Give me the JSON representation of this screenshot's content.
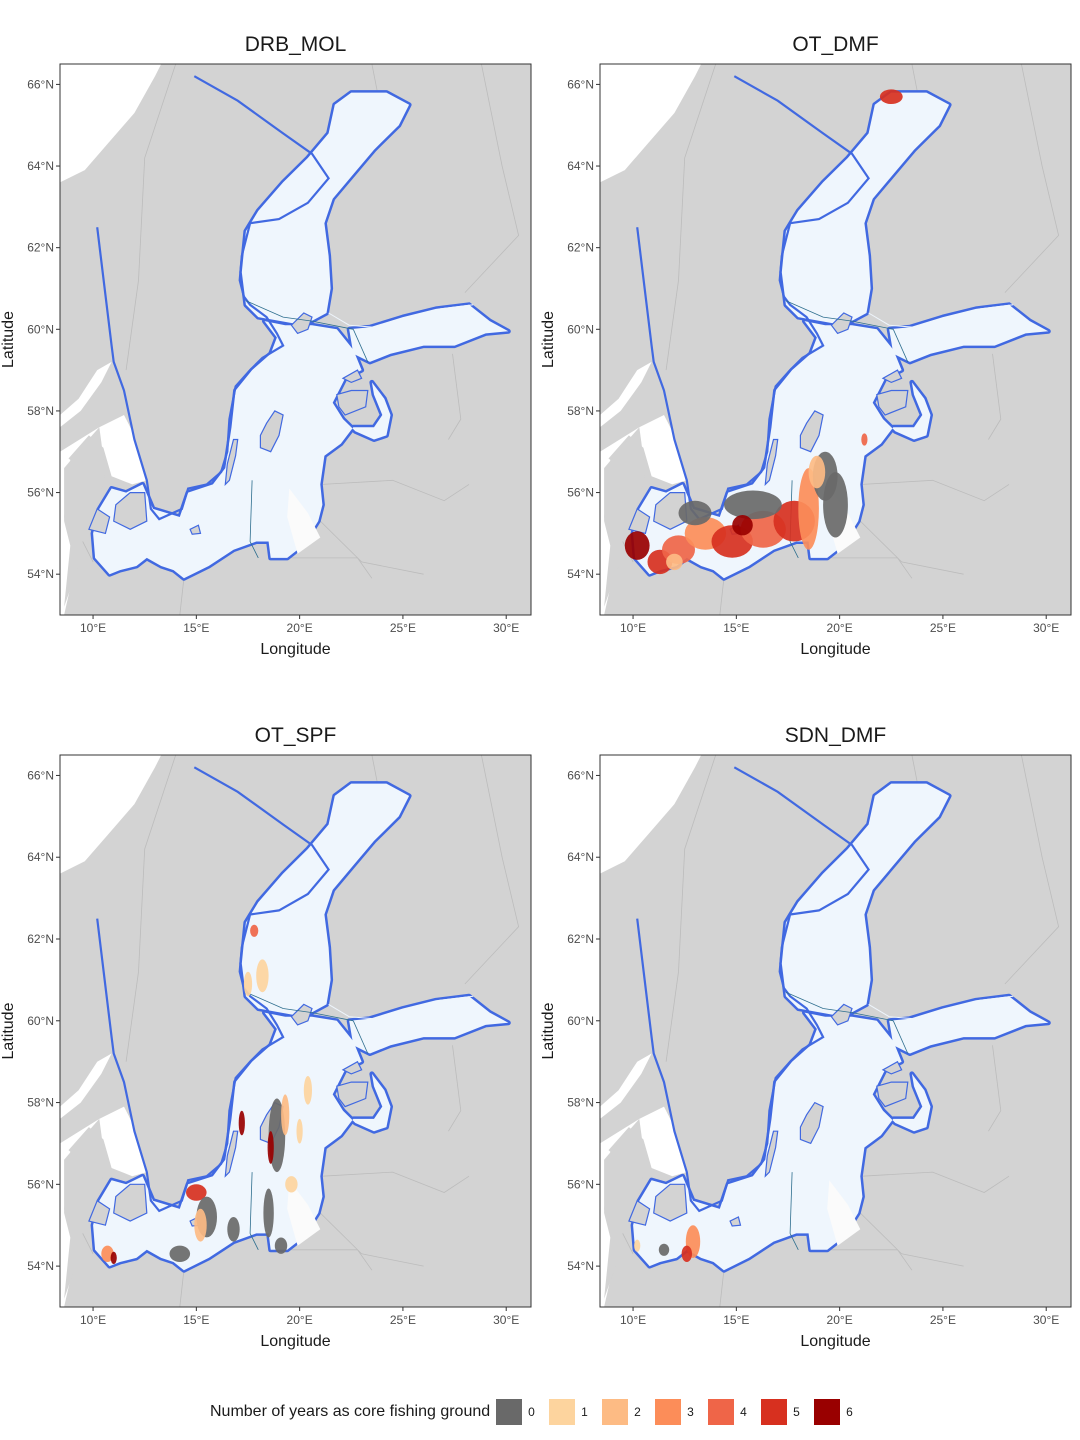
{
  "panels": [
    {
      "title": "DRB_MOL",
      "core": []
    },
    {
      "title": "OT_DMF",
      "core": [
        {
          "lon": 22.5,
          "lat": 65.7,
          "rx": 0.55,
          "ry": 0.18,
          "years": 5
        },
        {
          "lon": 10.2,
          "lat": 54.7,
          "rx": 0.6,
          "ry": 0.35,
          "years": 6
        },
        {
          "lon": 11.3,
          "lat": 54.3,
          "rx": 0.6,
          "ry": 0.3,
          "years": 5
        },
        {
          "lon": 12.2,
          "lat": 54.6,
          "rx": 0.8,
          "ry": 0.35,
          "years": 4
        },
        {
          "lon": 13.5,
          "lat": 55.0,
          "rx": 1.0,
          "ry": 0.4,
          "years": 3
        },
        {
          "lon": 14.8,
          "lat": 54.8,
          "rx": 1.0,
          "ry": 0.4,
          "years": 5
        },
        {
          "lon": 16.3,
          "lat": 55.1,
          "rx": 1.1,
          "ry": 0.45,
          "years": 4
        },
        {
          "lon": 17.8,
          "lat": 55.3,
          "rx": 1.0,
          "ry": 0.5,
          "years": 5
        },
        {
          "lon": 18.5,
          "lat": 55.6,
          "rx": 0.5,
          "ry": 1.0,
          "years": 3
        },
        {
          "lon": 19.3,
          "lat": 56.4,
          "rx": 0.6,
          "ry": 0.6,
          "years": 0
        },
        {
          "lon": 19.8,
          "lat": 55.7,
          "rx": 0.6,
          "ry": 0.8,
          "years": 0
        },
        {
          "lon": 15.8,
          "lat": 55.7,
          "rx": 1.4,
          "ry": 0.35,
          "years": 0
        },
        {
          "lon": 13.0,
          "lat": 55.5,
          "rx": 0.8,
          "ry": 0.3,
          "years": 0
        },
        {
          "lon": 15.3,
          "lat": 55.2,
          "rx": 0.5,
          "ry": 0.25,
          "years": 6
        },
        {
          "lon": 12.0,
          "lat": 54.3,
          "rx": 0.4,
          "ry": 0.2,
          "years": 2
        },
        {
          "lon": 18.9,
          "lat": 56.5,
          "rx": 0.4,
          "ry": 0.4,
          "years": 2
        },
        {
          "lon": 21.2,
          "lat": 57.3,
          "rx": 0.15,
          "ry": 0.15,
          "years": 4
        }
      ]
    },
    {
      "title": "OT_SPF",
      "core": [
        {
          "lon": 17.8,
          "lat": 62.2,
          "rx": 0.2,
          "ry": 0.15,
          "years": 4
        },
        {
          "lon": 18.2,
          "lat": 61.1,
          "rx": 0.3,
          "ry": 0.4,
          "years": 1
        },
        {
          "lon": 17.5,
          "lat": 60.9,
          "rx": 0.2,
          "ry": 0.3,
          "years": 1
        },
        {
          "lon": 17.2,
          "lat": 57.5,
          "rx": 0.15,
          "ry": 0.3,
          "years": 6
        },
        {
          "lon": 18.9,
          "lat": 57.2,
          "rx": 0.4,
          "ry": 0.9,
          "years": 0
        },
        {
          "lon": 18.6,
          "lat": 56.9,
          "rx": 0.15,
          "ry": 0.4,
          "years": 6
        },
        {
          "lon": 19.3,
          "lat": 57.7,
          "rx": 0.2,
          "ry": 0.5,
          "years": 2
        },
        {
          "lon": 20.4,
          "lat": 58.3,
          "rx": 0.2,
          "ry": 0.35,
          "years": 1
        },
        {
          "lon": 20.0,
          "lat": 57.3,
          "rx": 0.15,
          "ry": 0.3,
          "years": 1
        },
        {
          "lon": 19.6,
          "lat": 56.0,
          "rx": 0.3,
          "ry": 0.2,
          "years": 1
        },
        {
          "lon": 15.0,
          "lat": 55.8,
          "rx": 0.5,
          "ry": 0.2,
          "years": 5
        },
        {
          "lon": 15.5,
          "lat": 55.2,
          "rx": 0.5,
          "ry": 0.5,
          "years": 0
        },
        {
          "lon": 15.2,
          "lat": 55.0,
          "rx": 0.3,
          "ry": 0.4,
          "years": 2
        },
        {
          "lon": 14.2,
          "lat": 54.3,
          "rx": 0.5,
          "ry": 0.2,
          "years": 0
        },
        {
          "lon": 16.8,
          "lat": 54.9,
          "rx": 0.3,
          "ry": 0.3,
          "years": 0
        },
        {
          "lon": 18.5,
          "lat": 55.3,
          "rx": 0.25,
          "ry": 0.6,
          "years": 0
        },
        {
          "lon": 19.1,
          "lat": 54.5,
          "rx": 0.3,
          "ry": 0.2,
          "years": 0
        },
        {
          "lon": 10.7,
          "lat": 54.3,
          "rx": 0.3,
          "ry": 0.2,
          "years": 3
        },
        {
          "lon": 11.0,
          "lat": 54.2,
          "rx": 0.15,
          "ry": 0.15,
          "years": 6
        }
      ]
    },
    {
      "title": "SDN_DMF",
      "core": [
        {
          "lon": 12.9,
          "lat": 54.6,
          "rx": 0.35,
          "ry": 0.4,
          "years": 3
        },
        {
          "lon": 12.6,
          "lat": 54.3,
          "rx": 0.25,
          "ry": 0.2,
          "years": 5
        },
        {
          "lon": 11.5,
          "lat": 54.4,
          "rx": 0.25,
          "ry": 0.15,
          "years": 0
        },
        {
          "lon": 10.2,
          "lat": 54.5,
          "rx": 0.15,
          "ry": 0.15,
          "years": 1
        }
      ]
    }
  ],
  "axes": {
    "xlabel": "Longitude",
    "ylabel": "Latitude",
    "xticks": [
      {
        "value": 10,
        "label": "10°E"
      },
      {
        "value": 15,
        "label": "15°E"
      },
      {
        "value": 20,
        "label": "20°E"
      },
      {
        "value": 25,
        "label": "25°E"
      },
      {
        "value": 30,
        "label": "30°E"
      }
    ],
    "yticks": [
      {
        "value": 54,
        "label": "54°N"
      },
      {
        "value": 56,
        "label": "56°N"
      },
      {
        "value": 58,
        "label": "58°N"
      },
      {
        "value": 60,
        "label": "60°N"
      },
      {
        "value": 62,
        "label": "62°N"
      },
      {
        "value": 64,
        "label": "64°N"
      },
      {
        "value": 66,
        "label": "66°N"
      }
    ],
    "lon_range": [
      8.4,
      31.2
    ],
    "lat_range": [
      53.0,
      66.5
    ]
  },
  "colors": {
    "land": "#d3d3d3",
    "land_border": "#bcbcbc",
    "study_area": "#eff6fd",
    "coastal_zone": "#4169e1",
    "outside_sea": "#ffffff",
    "area_boundary": "#2e6e8e"
  },
  "legend": {
    "title": "Number of years as core fishing ground",
    "items": [
      {
        "label": "0",
        "color": "#696969"
      },
      {
        "label": "1",
        "color": "#fdd49e"
      },
      {
        "label": "2",
        "color": "#fdbb84"
      },
      {
        "label": "3",
        "color": "#fc8d59"
      },
      {
        "label": "4",
        "color": "#ef6548"
      },
      {
        "label": "5",
        "color": "#d7301f"
      },
      {
        "label": "6",
        "color": "#990000"
      }
    ]
  }
}
